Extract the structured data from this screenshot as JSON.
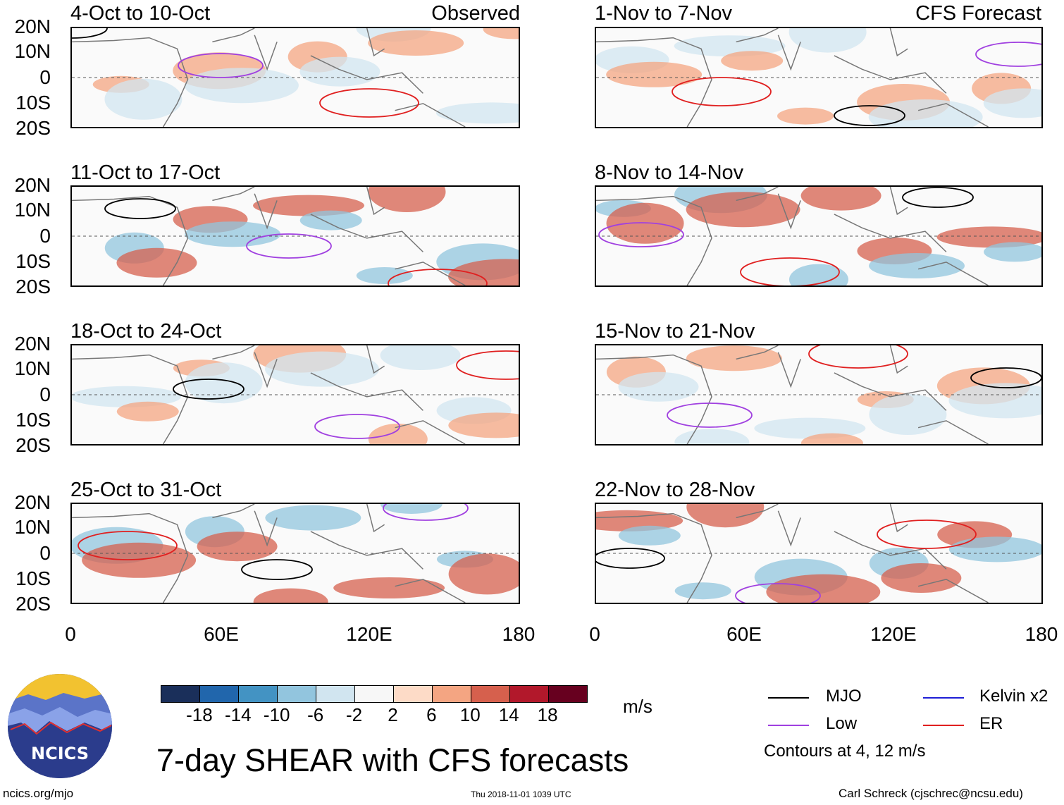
{
  "header": {
    "observed_label": "Observed",
    "forecast_label": "CFS Forecast"
  },
  "panels_left": [
    {
      "title": "4-Oct to 10-Oct"
    },
    {
      "title": "11-Oct to 17-Oct"
    },
    {
      "title": "18-Oct to 24-Oct"
    },
    {
      "title": "25-Oct to 31-Oct"
    }
  ],
  "panels_right": [
    {
      "title": "1-Nov to 7-Nov"
    },
    {
      "title": "8-Nov to 14-Nov"
    },
    {
      "title": "15-Nov to 21-Nov"
    },
    {
      "title": "22-Nov to 28-Nov"
    }
  ],
  "axes": {
    "lat_labels": [
      "20N",
      "10N",
      "0",
      "10S",
      "20S"
    ],
    "lon_labels": [
      "0",
      "60E",
      "120E",
      "180"
    ]
  },
  "colorbar": {
    "ticks": [
      "-18",
      "-14",
      "-10",
      "-6",
      "-2",
      "2",
      "6",
      "10",
      "14",
      "18"
    ],
    "units": "m/s",
    "colors": [
      "#1a2f5a",
      "#2166ac",
      "#4393c3",
      "#92c5de",
      "#d1e5f0",
      "#f7f7f7",
      "#fddbc7",
      "#f4a582",
      "#d6604d",
      "#b2182b",
      "#67001f"
    ]
  },
  "legend": {
    "mjo": {
      "label": "MJO",
      "color": "#000000"
    },
    "kelvin": {
      "label": "Kelvin x2",
      "color": "#1f1fd6"
    },
    "low": {
      "label": "Low",
      "color": "#a040e0"
    },
    "er": {
      "label": "ER",
      "color": "#e02020"
    },
    "contours_note": "Contours at 4, 12 m/s"
  },
  "footer": {
    "logo_text": "NCICS",
    "main_title": "7-day SHEAR with CFS forecasts",
    "url": "ncics.org/mjo",
    "timestamp": "Thu 2018-11-01 1039 UTC",
    "author": "Carl Schreck (cjschrec@ncsu.edu)"
  }
}
